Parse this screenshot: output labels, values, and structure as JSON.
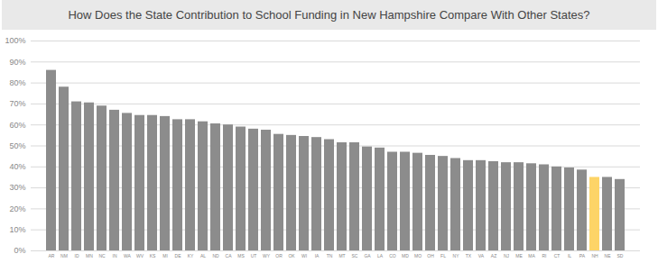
{
  "chart_data": {
    "type": "bar",
    "title": "How Does the State Contribution to School Funding in New Hampshire Compare With Other States?",
    "categories": [
      "AR",
      "NM",
      "ID",
      "MN",
      "NC",
      "IN",
      "WA",
      "WV",
      "KS",
      "MI",
      "DE",
      "KY",
      "AL",
      "ND",
      "CA",
      "MS",
      "UT",
      "WY",
      "OR",
      "OK",
      "WI",
      "IA",
      "TN",
      "MT",
      "SC",
      "GA",
      "LA",
      "CO",
      "MD",
      "MO",
      "OH",
      "FL",
      "NY",
      "TX",
      "VA",
      "AZ",
      "NJ",
      "ME",
      "MA",
      "RI",
      "CT",
      "IL",
      "PA",
      "NH",
      "NE",
      "SD"
    ],
    "values": [
      86,
      78,
      71,
      70.5,
      69,
      67,
      65.5,
      64.5,
      64.5,
      64,
      62.5,
      62.5,
      61.5,
      60.5,
      60,
      59,
      58,
      57.5,
      55.5,
      55,
      54.5,
      54,
      53,
      51.5,
      51.5,
      49.5,
      49,
      47,
      47,
      46.5,
      45.5,
      45,
      44,
      43,
      43,
      42.5,
      42,
      42,
      41.5,
      41,
      40,
      39.5,
      38.5,
      35,
      35,
      34
    ],
    "colors": [
      "#8c8c8c",
      "#8c8c8c",
      "#8c8c8c",
      "#8c8c8c",
      "#8c8c8c",
      "#8c8c8c",
      "#8c8c8c",
      "#8c8c8c",
      "#8c8c8c",
      "#8c8c8c",
      "#8c8c8c",
      "#8c8c8c",
      "#8c8c8c",
      "#8c8c8c",
      "#8c8c8c",
      "#8c8c8c",
      "#8c8c8c",
      "#8c8c8c",
      "#8c8c8c",
      "#8c8c8c",
      "#8c8c8c",
      "#8c8c8c",
      "#8c8c8c",
      "#8c8c8c",
      "#8c8c8c",
      "#8c8c8c",
      "#8c8c8c",
      "#8c8c8c",
      "#8c8c8c",
      "#8c8c8c",
      "#8c8c8c",
      "#8c8c8c",
      "#8c8c8c",
      "#8c8c8c",
      "#8c8c8c",
      "#8c8c8c",
      "#8c8c8c",
      "#8c8c8c",
      "#8c8c8c",
      "#8c8c8c",
      "#8c8c8c",
      "#8c8c8c",
      "#8c8c8c",
      "#fdd467",
      "#8c8c8c",
      "#8c8c8c"
    ],
    "ylim": [
      0,
      100
    ],
    "yticks": [
      {
        "value": 0,
        "label": "0%"
      },
      {
        "value": 10,
        "label": "10%"
      },
      {
        "value": 20,
        "label": "20%"
      },
      {
        "value": 30,
        "label": "30%"
      },
      {
        "value": 40,
        "label": "40%"
      },
      {
        "value": 50,
        "label": "50%"
      },
      {
        "value": 60,
        "label": "60%"
      },
      {
        "value": 70,
        "label": "70%"
      },
      {
        "value": 80,
        "label": "80%"
      },
      {
        "value": 90,
        "label": "90%"
      },
      {
        "value": 100,
        "label": "100%"
      }
    ],
    "grid": true
  }
}
